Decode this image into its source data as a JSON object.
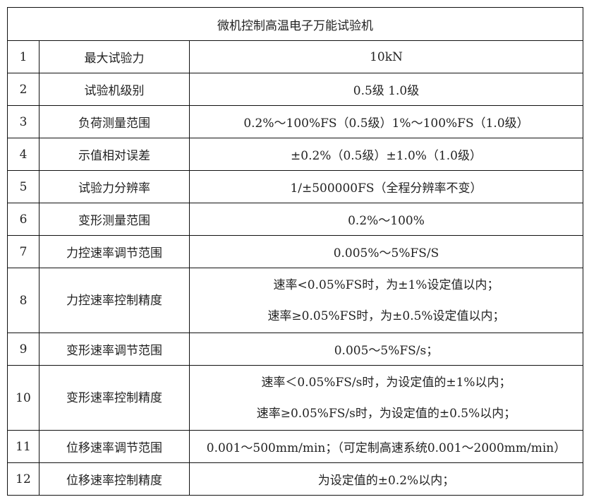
{
  "title": "微机控制高温电子万能试验机",
  "rows": [
    {
      "no": "1",
      "name": "最大试验力",
      "value": [
        "10kN"
      ]
    },
    {
      "no": "2",
      "name": "试验机级别",
      "value": [
        "0.5级 1.0级"
      ]
    },
    {
      "no": "3",
      "name": "负荷测量范围",
      "value": [
        "0.2%～100%FS（0.5级）1%～100%FS（1.0级）"
      ]
    },
    {
      "no": "4",
      "name": "示值相对误差",
      "value": [
        "±0.2%（0.5级）±1.0%（1.0级）"
      ]
    },
    {
      "no": "5",
      "name": "试验力分辨率",
      "value": [
        "1/±500000FS（全程分辨率不变）"
      ]
    },
    {
      "no": "6",
      "name": "变形测量范围",
      "value": [
        "0.2%～100%"
      ]
    },
    {
      "no": "7",
      "name": "力控速率调节范围",
      "value": [
        "0.005%～5%FS/S"
      ]
    },
    {
      "no": "8",
      "name": "力控速率控制精度",
      "value": [
        "速率<0.05%FS时，为±1%设定值以内；",
        "速率≥0.05%FS时，为±0.5%设定值以内；"
      ]
    },
    {
      "no": "9",
      "name": "变形速率调节范围",
      "value": [
        "0.005～5%FS/s；"
      ]
    },
    {
      "no": "10",
      "name": "变形速率控制精度",
      "value": [
        "速率＜0.05%FS/s时，为设定值的±1%以内；",
        "速率≥0.05%FS/s时，为设定值的±0.5%以内；"
      ]
    },
    {
      "no": "11",
      "name": "位移速率调节范围",
      "value": [
        "0.001～500mm/min；（可定制高速系统0.001～2000mm/min）"
      ]
    },
    {
      "no": "12",
      "name": "位移速率控制精度",
      "value": [
        "为设定值的±0.2%以内；"
      ]
    }
  ]
}
